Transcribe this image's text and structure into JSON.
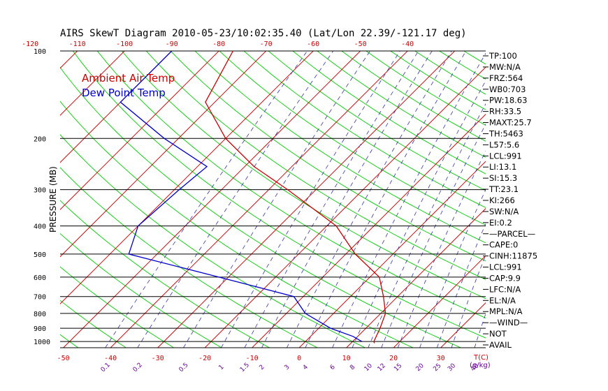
{
  "colors": {
    "ambient": "#cc0000",
    "dewpoint": "#0000cc",
    "dry_adiabat": "#00cc00",
    "isotherm": "#cc0000",
    "mixing_ratio": "#3333aa",
    "black": "#000000",
    "top_temp_label": "#cc0000",
    "bottom_temp_label": "#cc0000",
    "mixing_label": "#660099"
  },
  "chart_data": {
    "type": "line",
    "title": "AIRS SkewT Diagram 2010-05-23/10:02:35.40 (Lat/Lon 22.39/-121.17 deg)",
    "ylabel": "PRESSURE (MB)",
    "xlabel_right": "T(C)",
    "mixing_label_right": "(g/kg)",
    "pressure_ticks": [
      100,
      200,
      300,
      400,
      500,
      600,
      700,
      800,
      900,
      1000
    ],
    "top_temp_ticks": [
      -120,
      -110,
      -100,
      -90,
      -80,
      -70,
      -60,
      -50,
      -40
    ],
    "bottom_temp_ticks": [
      -50,
      -40,
      -30,
      -20,
      -10,
      0,
      10,
      20,
      30
    ],
    "mixing_ratio_ticks": [
      "0.1",
      "0.2",
      "0.5",
      "1",
      "1.5",
      "2",
      "3",
      "4",
      "6",
      "8",
      "10",
      "12",
      "15",
      "20",
      "25",
      "30",
      "40"
    ],
    "series": [
      {
        "name": "Ambient Air Temp",
        "points": [
          [
            100,
            -77
          ],
          [
            150,
            -72
          ],
          [
            200,
            -60
          ],
          [
            250,
            -48
          ],
          [
            300,
            -36
          ],
          [
            400,
            -18
          ],
          [
            500,
            -8
          ],
          [
            600,
            2
          ],
          [
            700,
            7
          ],
          [
            800,
            11
          ],
          [
            900,
            13
          ],
          [
            1000,
            14.5
          ],
          [
            1013,
            15
          ]
        ]
      },
      {
        "name": "Dew Point Temp",
        "points": [
          [
            100,
            -90
          ],
          [
            150,
            -90
          ],
          [
            200,
            -73
          ],
          [
            250,
            -58
          ],
          [
            300,
            -59
          ],
          [
            400,
            -60
          ],
          [
            500,
            -56
          ],
          [
            600,
            -32
          ],
          [
            700,
            -12
          ],
          [
            800,
            -6
          ],
          [
            900,
            2.5
          ],
          [
            960,
            9
          ],
          [
            1000,
            12
          ]
        ]
      }
    ],
    "legend": [
      "Ambient Air Temp",
      "Dew Point Temp"
    ],
    "legend_position": "top-left",
    "indices": [
      "TP:100",
      "MW:N/A",
      "FRZ:564",
      "WB0:703",
      "PW:18.63",
      "RH:33.5",
      "MAXT:25.7",
      "TH:5463",
      "L57:5.6",
      "LCL:991",
      "LI:13.1",
      "SI:15.3",
      "TT:23.1",
      "KI:266",
      "SW:N/A",
      "EI:0.2",
      "—PARCEL—",
      "CAPE:0",
      "CINH:11875",
      "LCL:991",
      "CAP:9.9",
      "LFC:N/A",
      "EL:N/A",
      "MPL:N/A",
      "—WIND—",
      "NOT",
      "AVAIL"
    ]
  }
}
